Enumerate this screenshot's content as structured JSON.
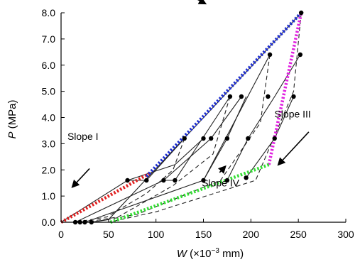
{
  "chart_data": {
    "type": "line",
    "xlabel": {
      "var": "W",
      "unit": "(×10",
      "exp": "−3",
      "unit2": " mm)"
    },
    "ylabel": {
      "var": "P",
      "unit": " (MPa)"
    },
    "xlim": [
      0,
      300
    ],
    "ylim": [
      0,
      8
    ],
    "x_ticks": [
      "0",
      "50",
      "100",
      "150",
      "200",
      "250",
      "300"
    ],
    "y_ticks": [
      "0.0",
      "1.0",
      "2.0",
      "3.0",
      "4.0",
      "5.0",
      "6.0",
      "7.0",
      "8.0"
    ],
    "grid": false,
    "legend": "none",
    "colors": {
      "axis": "#000000",
      "curve": "#222222",
      "slope1": "#e02020",
      "slope2": "#1f2fd0",
      "slope3": "#e020e0",
      "slope4": "#33dd33"
    },
    "curves": [
      {
        "loading": [
          [
            0,
            0
          ],
          [
            70,
            1.6
          ],
          [
            90,
            1.6
          ],
          [
            130,
            3.2
          ]
        ],
        "unloading": [
          [
            130,
            3.2
          ],
          [
            118,
            2.0
          ],
          [
            90,
            1.1
          ],
          [
            48,
            0.2
          ],
          [
            15,
            0
          ]
        ]
      },
      {
        "loading": [
          [
            15,
            0
          ],
          [
            108,
            1.6
          ],
          [
            120,
            1.6
          ],
          [
            178,
            4.8
          ]
        ],
        "unloading": [
          [
            178,
            4.8
          ],
          [
            160,
            2.6
          ],
          [
            118,
            1.4
          ],
          [
            60,
            0.2
          ],
          [
            25,
            0
          ]
        ]
      },
      {
        "loading": [
          [
            25,
            0
          ],
          [
            150,
            1.6
          ],
          [
            220,
            6.4
          ]
        ],
        "unloading": [
          [
            220,
            6.4
          ],
          [
            210,
            3.8
          ],
          [
            168,
            1.6
          ],
          [
            80,
            0.3
          ],
          [
            32,
            0
          ]
        ]
      },
      {
        "loading": [
          [
            32,
            0
          ],
          [
            50,
            0.1
          ],
          [
            253,
            8.0
          ]
        ],
        "unloading": [
          [
            253,
            8.0
          ],
          [
            245,
            5.0
          ],
          [
            205,
            1.6
          ],
          [
            100,
            0.4
          ],
          [
            50,
            0
          ]
        ]
      },
      {
        "loading": [
          [
            70,
            1.6
          ],
          [
            120,
            2.2
          ],
          [
            150,
            3.2
          ]
        ],
        "unloading": []
      },
      {
        "loading": [
          [
            108,
            1.6
          ],
          [
            158,
            3.2
          ],
          [
            190,
            4.8
          ]
        ],
        "unloading": []
      },
      {
        "loading": [
          [
            150,
            1.6
          ],
          [
            175,
            3.2
          ],
          [
            195,
            4.8
          ]
        ],
        "unloading": []
      },
      {
        "loading": [
          [
            175,
            1.6
          ],
          [
            197,
            3.2
          ],
          [
            225,
            4.8
          ],
          [
            252,
            6.4
          ]
        ],
        "unloading": []
      },
      {
        "loading": [
          [
            195,
            1.7
          ],
          [
            225,
            3.2
          ],
          [
            245,
            4.8
          ]
        ],
        "unloading": []
      }
    ],
    "markers": [
      [
        70,
        1.6
      ],
      [
        90,
        1.6
      ],
      [
        108,
        1.6
      ],
      [
        120,
        1.6
      ],
      [
        130,
        3.2
      ],
      [
        150,
        1.6
      ],
      [
        175,
        1.6
      ],
      [
        150,
        3.2
      ],
      [
        158,
        3.2
      ],
      [
        175,
        3.2
      ],
      [
        178,
        4.8
      ],
      [
        190,
        4.8
      ],
      [
        197,
        3.2
      ],
      [
        195,
        1.7
      ],
      [
        218,
        4.8
      ],
      [
        245,
        4.8
      ],
      [
        225,
        3.2
      ],
      [
        220,
        6.4
      ],
      [
        252,
        6.4
      ],
      [
        253,
        8.0
      ],
      [
        15,
        0
      ],
      [
        20,
        0
      ],
      [
        25,
        0
      ],
      [
        32,
        0
      ]
    ],
    "slope_lines": [
      {
        "name": "Slope I",
        "color": "slope1",
        "points": [
          [
            0,
            0
          ],
          [
            95,
            1.9
          ]
        ]
      },
      {
        "name": "Slope II",
        "color": "slope2",
        "points": [
          [
            90,
            1.75
          ],
          [
            253,
            8.0
          ]
        ]
      },
      {
        "name": "Slope III",
        "color": "slope3",
        "points": [
          [
            219,
            2.2
          ],
          [
            253,
            8.0
          ]
        ]
      },
      {
        "name": "Slope IV",
        "color": "slope4",
        "points": [
          [
            52,
            0
          ],
          [
            219,
            2.2
          ]
        ]
      }
    ],
    "annotations": [
      {
        "text": "Slope I",
        "label_at": [
          23,
          3.15
        ],
        "arrow_from": [
          30,
          2.05
        ],
        "arrow_to": [
          12,
          1.35
        ]
      },
      {
        "text": "Slope II",
        "label_at": [
          115,
          9.1
        ],
        "arrow_from": [
          134,
          8.7
        ],
        "arrow_to": [
          152,
          8.35
        ]
      },
      {
        "text": "Slope III",
        "label_at": [
          244,
          4.0
        ],
        "arrow_from": [
          261,
          3.45
        ],
        "arrow_to": [
          229,
          2.2
        ]
      },
      {
        "text": "Slope IV",
        "label_at": [
          168,
          1.37
        ],
        "arrow_from": [
          167,
          1.9
        ],
        "arrow_to": [
          173,
          2.13
        ]
      }
    ]
  }
}
